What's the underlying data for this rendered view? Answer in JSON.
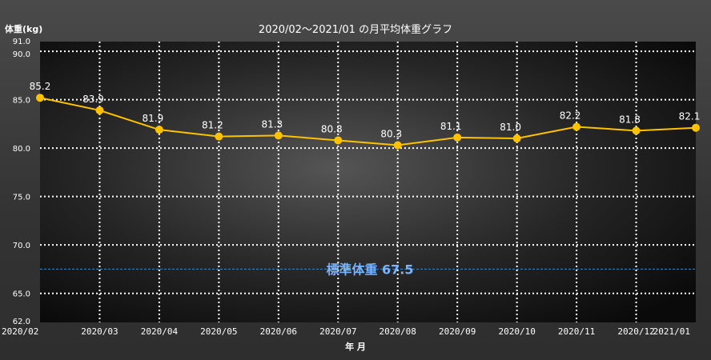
{
  "chart_data": {
    "type": "line",
    "title": "2020/02～2021/01 の月平均体重グラフ",
    "ylabel": "体重(kg)",
    "xlabel": "年 月",
    "ylim": [
      62.0,
      91.0
    ],
    "yticks": [
      {
        "value": 91.0,
        "label": "91.0"
      },
      {
        "value": 90.0,
        "label": "90.0"
      },
      {
        "value": 85.0,
        "label": "85.0"
      },
      {
        "value": 80.0,
        "label": "80.0"
      },
      {
        "value": 75.0,
        "label": "75.0"
      },
      {
        "value": 70.0,
        "label": "70.0"
      },
      {
        "value": 65.0,
        "label": "65.0"
      },
      {
        "value": 62.0,
        "label": "62.0"
      }
    ],
    "categories": [
      "2020/02",
      "2020/03",
      "2020/04",
      "2020/05",
      "2020/06",
      "2020/07",
      "2020/08",
      "2020/09",
      "2020/10",
      "2020/11",
      "2020/12",
      "2021/01"
    ],
    "values": [
      85.2,
      83.9,
      81.9,
      81.2,
      81.3,
      80.8,
      80.3,
      81.1,
      81.0,
      82.2,
      81.8,
      82.1
    ],
    "value_labels": [
      "85.2",
      "83.9",
      "81.9",
      "81.2",
      "81.3",
      "80.8",
      "80.3",
      "81.1",
      "81.0",
      "82.2",
      "81.8",
      "82.1"
    ],
    "reference_line": {
      "label": "標準体重 67.5",
      "value": 67.5,
      "color": "#2f8fd8"
    },
    "line_color": "#ffc200",
    "grid": true
  }
}
